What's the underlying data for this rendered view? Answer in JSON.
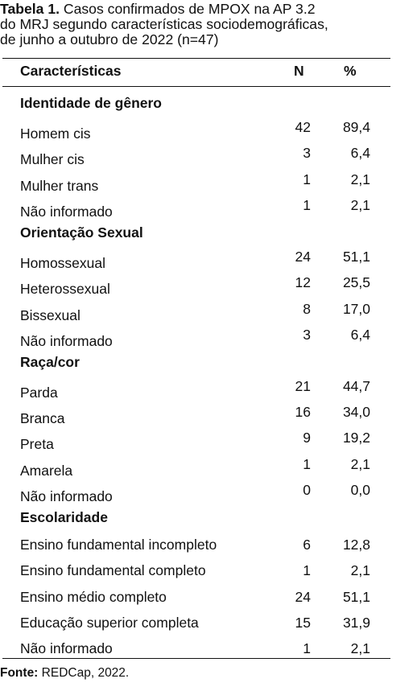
{
  "caption": {
    "label": "Tabela 1.",
    "line1_rest": "Casos confirmados de MPOX na AP 3.2",
    "line2": "do MRJ segundo características sociodemográficas,",
    "line3": "de junho a outubro de 2022 (n=47)"
  },
  "header": {
    "col1": "Características",
    "col2": "N",
    "col3": "%"
  },
  "groups": [
    {
      "title": "Identidade de gênero",
      "rows": [
        {
          "label": "Homem cis",
          "n": "42",
          "pct": "89,4"
        },
        {
          "label": "Mulher cis",
          "n": "3",
          "pct": "6,4"
        },
        {
          "label": "Mulher trans",
          "n": "1",
          "pct": "2,1"
        },
        {
          "label": "Não informado",
          "n": "1",
          "pct": "2,1"
        }
      ]
    },
    {
      "title": "Orientação Sexual",
      "rows": [
        {
          "label": "Homossexual",
          "n": "24",
          "pct": "51,1"
        },
        {
          "label": "Heterossexual",
          "n": "12",
          "pct": "25,5"
        },
        {
          "label": "Bissexual",
          "n": "8",
          "pct": "17,0"
        },
        {
          "label": "Não informado",
          "n": "3",
          "pct": "6,4"
        }
      ]
    },
    {
      "title": "Raça/cor",
      "rows": [
        {
          "label": "Parda",
          "n": "21",
          "pct": "44,7"
        },
        {
          "label": "Branca",
          "n": "16",
          "pct": "34,0"
        },
        {
          "label": "Preta",
          "n": "9",
          "pct": "19,2"
        },
        {
          "label": "Amarela",
          "n": "1",
          "pct": "2,1"
        },
        {
          "label": "Não informado",
          "n": "0",
          "pct": "0,0"
        }
      ]
    },
    {
      "title": "Escolaridade",
      "rows": [
        {
          "label": "Ensino fundamental incompleto",
          "n": "6",
          "pct": "12,8"
        },
        {
          "label": "Ensino fundamental completo",
          "n": "1",
          "pct": "2,1"
        },
        {
          "label": "Ensino médio completo",
          "n": "24",
          "pct": "51,1"
        },
        {
          "label": "Educação superior completa",
          "n": "15",
          "pct": "31,9"
        },
        {
          "label": "Não informado",
          "n": "1",
          "pct": "2,1"
        }
      ]
    }
  ],
  "source": {
    "label": "Fonte:",
    "text": "REDCap, 2022."
  }
}
